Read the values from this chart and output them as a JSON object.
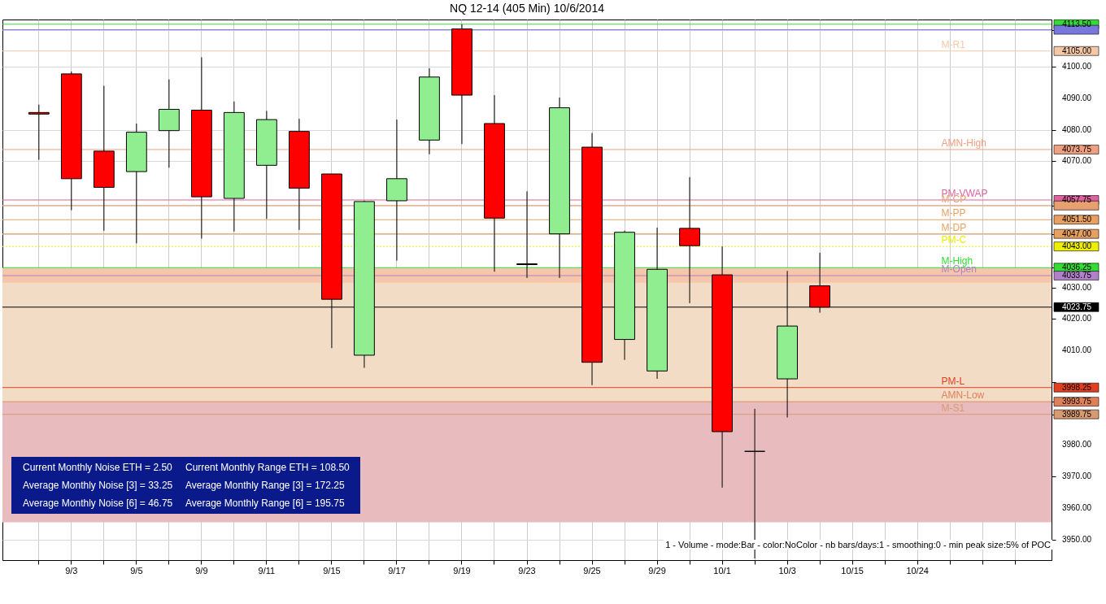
{
  "chart_data": {
    "type": "candlestick",
    "title": "NQ 12-14 (405 Min)  10/6/2014",
    "categories": [
      null,
      "9/3",
      null,
      "9/5",
      null,
      "9/9",
      null,
      "9/11",
      null,
      "9/15",
      null,
      "9/17",
      null,
      "9/19",
      null,
      "9/23",
      null,
      "9/25",
      null,
      "9/29",
      null,
      "10/1",
      null,
      "10/3",
      null,
      "10/15",
      null,
      "10/24",
      null,
      null,
      null
    ],
    "ohlc": [
      [
        4085.5,
        4088,
        4070.5,
        4085
      ],
      [
        4097.75,
        4098.5,
        4054.5,
        4064.5
      ],
      [
        4073.25,
        4094,
        4048,
        4061.75
      ],
      [
        4066.75,
        4082,
        4044,
        4079.25
      ],
      [
        4079.75,
        4096,
        4068,
        4086.5
      ],
      [
        4086.25,
        4103,
        4045.5,
        4058.75
      ],
      [
        4058.25,
        4089,
        4047.75,
        4085.5
      ],
      [
        4068.75,
        4086,
        4051.75,
        4083.25
      ],
      [
        4079.5,
        4083.5,
        4048.25,
        4061.5
      ],
      [
        4066,
        4066,
        4010.75,
        4026.25
      ],
      [
        4008.5,
        4057.5,
        4004.5,
        4057.25
      ],
      [
        4057.5,
        4083.25,
        4038.5,
        4064.5
      ],
      [
        4076.75,
        4099.5,
        4072.25,
        4096.75
      ],
      [
        4112,
        4113.5,
        4075.5,
        4091
      ],
      [
        4082,
        4091,
        4035,
        4052
      ],
      [
        4037.5,
        4060.5,
        4033,
        4037.25
      ],
      [
        4047,
        4090.25,
        4033,
        4087
      ],
      [
        4074.5,
        4079,
        3999,
        4006.25
      ],
      [
        4013.5,
        4048,
        4007,
        4047.5
      ],
      [
        4003.5,
        4049,
        4001,
        4035.75
      ],
      [
        4048.75,
        4065,
        4025,
        4043.25
      ],
      [
        4034,
        4043,
        3966.5,
        3984.25
      ],
      [
        3978,
        3991.5,
        3944,
        3978
      ],
      [
        4001,
        4035.25,
        3988.75,
        4017.75
      ],
      [
        4030.5,
        4041,
        4022,
        4023.75
      ],
      null,
      null,
      null,
      null,
      null,
      null
    ],
    "colors": [
      "#ff0000",
      "#ff0000",
      "#ff0000",
      "#90ee90",
      "#90ee90",
      "#ff0000",
      "#90ee90",
      "#90ee90",
      "#ff0000",
      "#ff0000",
      "#90ee90",
      "#90ee90",
      "#90ee90",
      "#ff0000",
      "#ff0000",
      "#ff0000",
      "#90ee90",
      "#ff0000",
      "#90ee90",
      "#90ee90",
      "#ff0000",
      "#ff0000",
      "#000000",
      "#90ee90",
      "#ff0000",
      null,
      null,
      null,
      null,
      null,
      null
    ],
    "ylim": [
      3943.5,
      4115
    ],
    "yticks": [
      {
        "value": 3950,
        "label": "3950.00"
      },
      {
        "value": 3960,
        "label": "3960.00"
      },
      {
        "value": 3970,
        "label": "3970.00"
      },
      {
        "value": 3980,
        "label": "3980.00"
      },
      {
        "value": 3989.75,
        "label": "3989.75"
      },
      {
        "value": 3990,
        "label": null
      },
      {
        "value": 3993.75,
        "label": "3993.75"
      },
      {
        "value": 3998.25,
        "label": "3998.25"
      },
      {
        "value": 4000,
        "label": null
      },
      {
        "value": 4010,
        "label": "4010.00"
      },
      {
        "value": 4020,
        "label": "4020.00"
      },
      {
        "value": 4023.75,
        "label": "4023.75"
      },
      {
        "value": 4030,
        "label": "4030.00"
      },
      {
        "value": 4033.75,
        "label": "4033.75"
      },
      {
        "value": 4036.25,
        "label": "4036.25"
      },
      {
        "value": 4043,
        "label": "4043.00"
      },
      {
        "value": 4047,
        "label": "4047.00"
      },
      {
        "value": 4051.5,
        "label": "4051.50"
      },
      {
        "value": 4056,
        "label": null
      },
      {
        "value": 4057.75,
        "label": "4057.75"
      },
      {
        "value": 4070,
        "label": "4070.00"
      },
      {
        "value": 4073.75,
        "label": "4073.75"
      },
      {
        "value": 4080,
        "label": "4080.00"
      },
      {
        "value": 4090,
        "label": "4090.00"
      },
      {
        "value": 4100,
        "label": "4100.00"
      },
      {
        "value": 4105,
        "label": "4105.00"
      },
      {
        "value": 4111.75,
        "label": null
      },
      {
        "value": 4113.5,
        "label": "4113.50"
      }
    ],
    "grid": true,
    "bands": [
      {
        "axis": "y",
        "from": 3955.5,
        "to": 3993.5,
        "color": "#e8bcbe"
      },
      {
        "axis": "y",
        "from": 3993.5,
        "to": 4036,
        "color": "#f2dcc6"
      },
      {
        "axis": "y",
        "from": 4031.5,
        "to": 4036,
        "color": "#f6c6aa"
      }
    ],
    "ref_lines": [
      {
        "axis": "y",
        "value": 4113.5,
        "label": null,
        "color": "#33dd33"
      },
      {
        "axis": "y",
        "value": 4111.75,
        "label": null,
        "color": "#7777dd"
      },
      {
        "axis": "y",
        "value": 4105,
        "label": "M-R1",
        "color": "#f5c9a8"
      },
      {
        "axis": "y",
        "value": 4073.75,
        "label": "AMN-High",
        "color": "#f0a080"
      },
      {
        "axis": "y",
        "value": 4057.75,
        "label": "PM-VWAP",
        "color": "#e060a0"
      },
      {
        "axis": "y",
        "value": 4056,
        "label": "M-CP",
        "color": "#e8a070"
      },
      {
        "axis": "y",
        "value": 4051.5,
        "label": "M-PP",
        "color": "#e8a060"
      },
      {
        "axis": "y",
        "value": 4047,
        "label": "M-DP",
        "color": "#e8a060"
      },
      {
        "axis": "y",
        "value": 4043,
        "label": "PM-C",
        "color": "#eeee00",
        "line_style": "dotted"
      },
      {
        "axis": "y",
        "value": 4036.25,
        "label": "M-High",
        "color": "#33dd33"
      },
      {
        "axis": "y",
        "value": 4033.75,
        "label": "M-Open",
        "color": "#b080c8"
      },
      {
        "axis": "y",
        "value": 4023.75,
        "label": null,
        "color": "#000000"
      },
      {
        "axis": "y",
        "value": 3998.25,
        "label": "PM-L",
        "color": "#e04020"
      },
      {
        "axis": "y",
        "value": 3993.75,
        "label": "AMN-Low",
        "color": "#e0805a"
      },
      {
        "axis": "y",
        "value": 3989.75,
        "label": "M-S1",
        "color": "#d89a70"
      }
    ],
    "annotations": [
      "Current Monthly Noise ETH = 2.50",
      "Current Monthly Range ETH = 108.50",
      "Average Monthly Noise [3] = 33.25",
      "Average Monthly Range [3] = 172.25",
      "Average Monthly Noise [6] = 46.75",
      "Average Monthly Range [6] = 195.75",
      "1 - Volume - mode:Bar - color:NoColor - nb bars/days:1 - smoothing:0 - min peak size:5% of POC"
    ]
  }
}
